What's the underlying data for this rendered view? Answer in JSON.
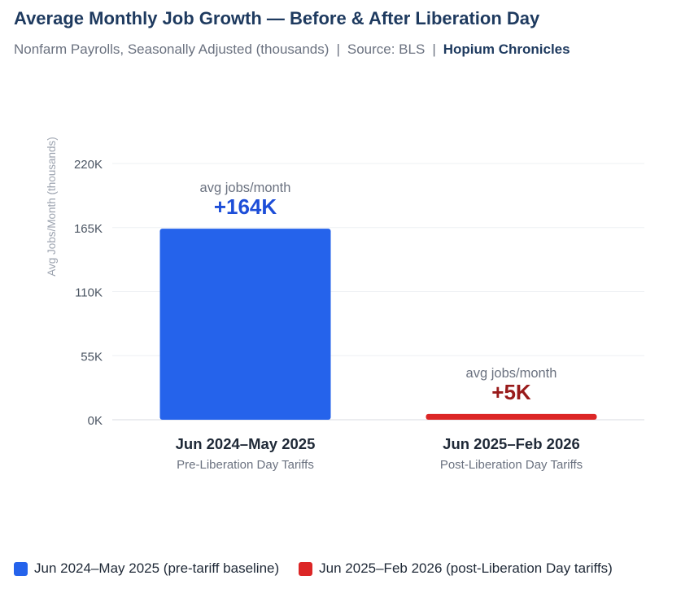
{
  "header": {
    "title": "Average Monthly Job Growth — Before & After Liberation Day",
    "subtitle_parts": [
      "Nonfarm Payrolls, Seasonally Adjusted (thousands)",
      "Source: BLS"
    ],
    "separator": "|",
    "brand": "Hopium Chronicles"
  },
  "chart_data": {
    "type": "bar",
    "title": "Average Monthly Job Growth — Before & After Liberation Day",
    "ylabel": "Avg Jobs/Month (thousands)",
    "xlabel": "",
    "ylim": [
      0,
      220
    ],
    "yticks": [
      0,
      55,
      110,
      165,
      220
    ],
    "ytick_labels": [
      "0K",
      "55K",
      "110K",
      "165K",
      "220K"
    ],
    "grid": true,
    "categories": [
      "Jun 2024–May 2025",
      "Jun 2025–Feb 2026"
    ],
    "category_sublabels": [
      "Pre-Liberation Day Tariffs",
      "Post-Liberation Day Tariffs"
    ],
    "values": [
      164,
      5
    ],
    "value_labels": [
      "+164K",
      "+5K"
    ],
    "value_caption": "avg jobs/month",
    "colors": [
      "#2563eb",
      "#dc2626"
    ],
    "value_label_colors": [
      "#1d4ed8",
      "#991b1b"
    ],
    "legend": [
      {
        "label": "Jun 2024–May 2025 (pre-tariff baseline)",
        "color": "#2563eb"
      },
      {
        "label": "Jun 2025–Feb 2026 (post-Liberation Day tariffs)",
        "color": "#dc2626"
      }
    ],
    "legend_position": "bottom-left"
  }
}
